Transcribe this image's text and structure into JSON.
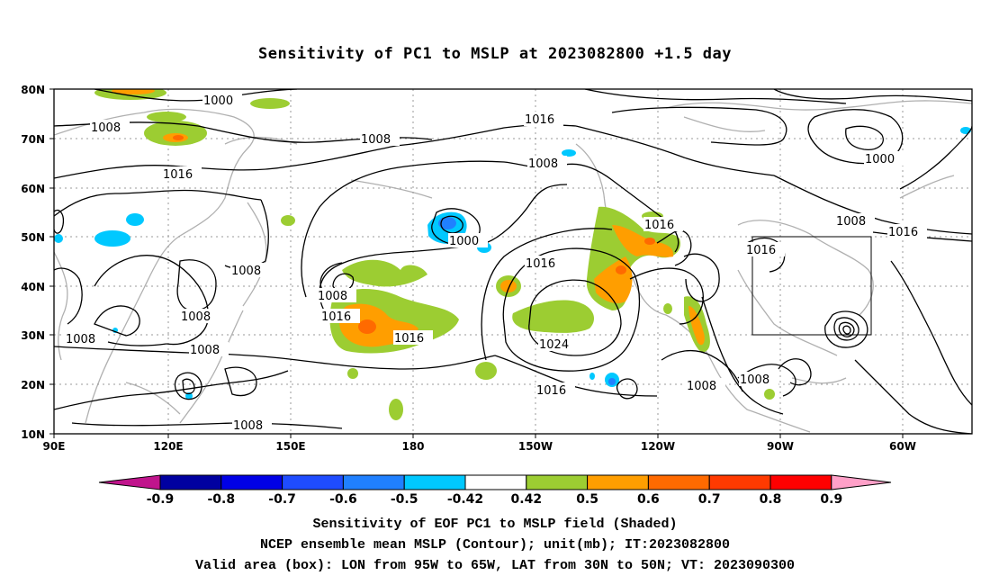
{
  "title": "Sensitivity of PC1 to MSLP at 2023082800 +1.5 day",
  "lat_ticks": [
    "80N",
    "70N",
    "60N",
    "50N",
    "40N",
    "30N",
    "20N",
    "10N"
  ],
  "lon_ticks": [
    "90E",
    "120E",
    "150E",
    "180",
    "150W",
    "120W",
    "90W",
    "60W"
  ],
  "contour_labels": [
    "1000",
    "1008",
    "1008",
    "1016",
    "1016",
    "1008",
    "1000",
    "1008",
    "1016",
    "1016",
    "1016",
    "1008",
    "1016",
    "1008",
    "1016",
    "1024",
    "1008",
    "1008",
    "1016",
    "1000",
    "1008",
    "1016",
    "1008",
    "1008",
    "1016",
    "1008"
  ],
  "colorbar": {
    "labels": [
      "-0.9",
      "-0.8",
      "-0.7",
      "-0.6",
      "-0.5",
      "-0.42",
      "0.42",
      "0.5",
      "0.6",
      "0.7",
      "0.8",
      "0.9"
    ],
    "colors": {
      "low_arrow": "#c0148c",
      "bins": [
        "#0000a0",
        "#0000e6",
        "#1f4cff",
        "#2080ff",
        "#00c8ff",
        "#ffffff",
        "#9ccd32",
        "#ff9e00",
        "#ff6a00",
        "#ff3a00",
        "#ff0000"
      ],
      "high_arrow": "#ffa0c8"
    }
  },
  "caption_lines": [
    "Sensitivity of EOF PC1 to MSLP field (Shaded)",
    "NCEP ensemble mean MSLP (Contour); unit(mb); IT:2023082800",
    "Valid area (box): LON from 95W to 65W, LAT from 30N to 50N; VT: 2023090300"
  ]
}
